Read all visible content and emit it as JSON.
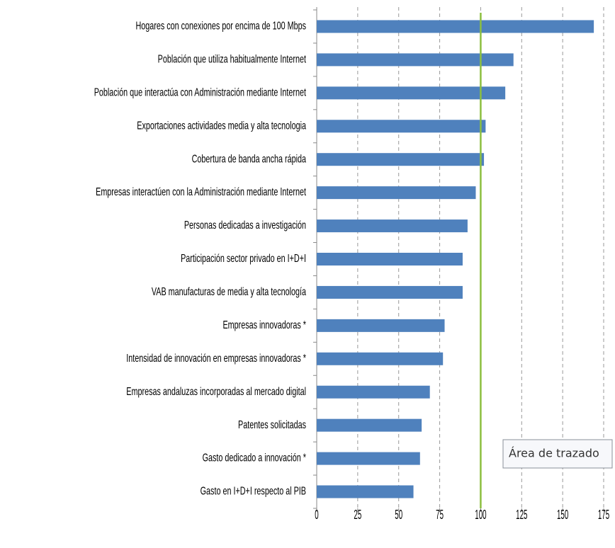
{
  "chart_data": {
    "type": "bar",
    "orientation": "horizontal",
    "categories": [
      "Hogares con conexiones por encima de 100 Mbps",
      "Población que utiliza habitualmente Internet",
      "Población que interactúa con Administración mediante Internet",
      "Exportaciones actividades media y alta tecnologia",
      "Cobertura de banda ancha rápida",
      "Empresas interactúen con la Administración mediante Internet",
      "Personas dedicadas a investigación",
      "Participación sector privado en I+D+I",
      "VAB manufacturas de media y alta tecnología",
      "Empresas innovadoras *",
      "Intensidad de innovación en empresas innovadoras *",
      "Empresas andaluzas incorporadas al mercado digital",
      "Patentes solicitadas",
      "Gasto dedicado a innovación *",
      "Gasto en I+D+I respecto al PIB"
    ],
    "values": [
      169,
      120,
      115,
      103,
      102,
      97,
      92,
      89,
      89,
      78,
      77,
      69,
      64,
      63,
      59
    ],
    "color": "#4f81bd",
    "xlim": [
      0,
      175
    ],
    "xticks": [
      0,
      25,
      50,
      75,
      100,
      125,
      150,
      175
    ],
    "grid": true,
    "reference_line": {
      "value": 100,
      "color": "#8cbf3f"
    },
    "tooltip": "Área de trazado"
  }
}
